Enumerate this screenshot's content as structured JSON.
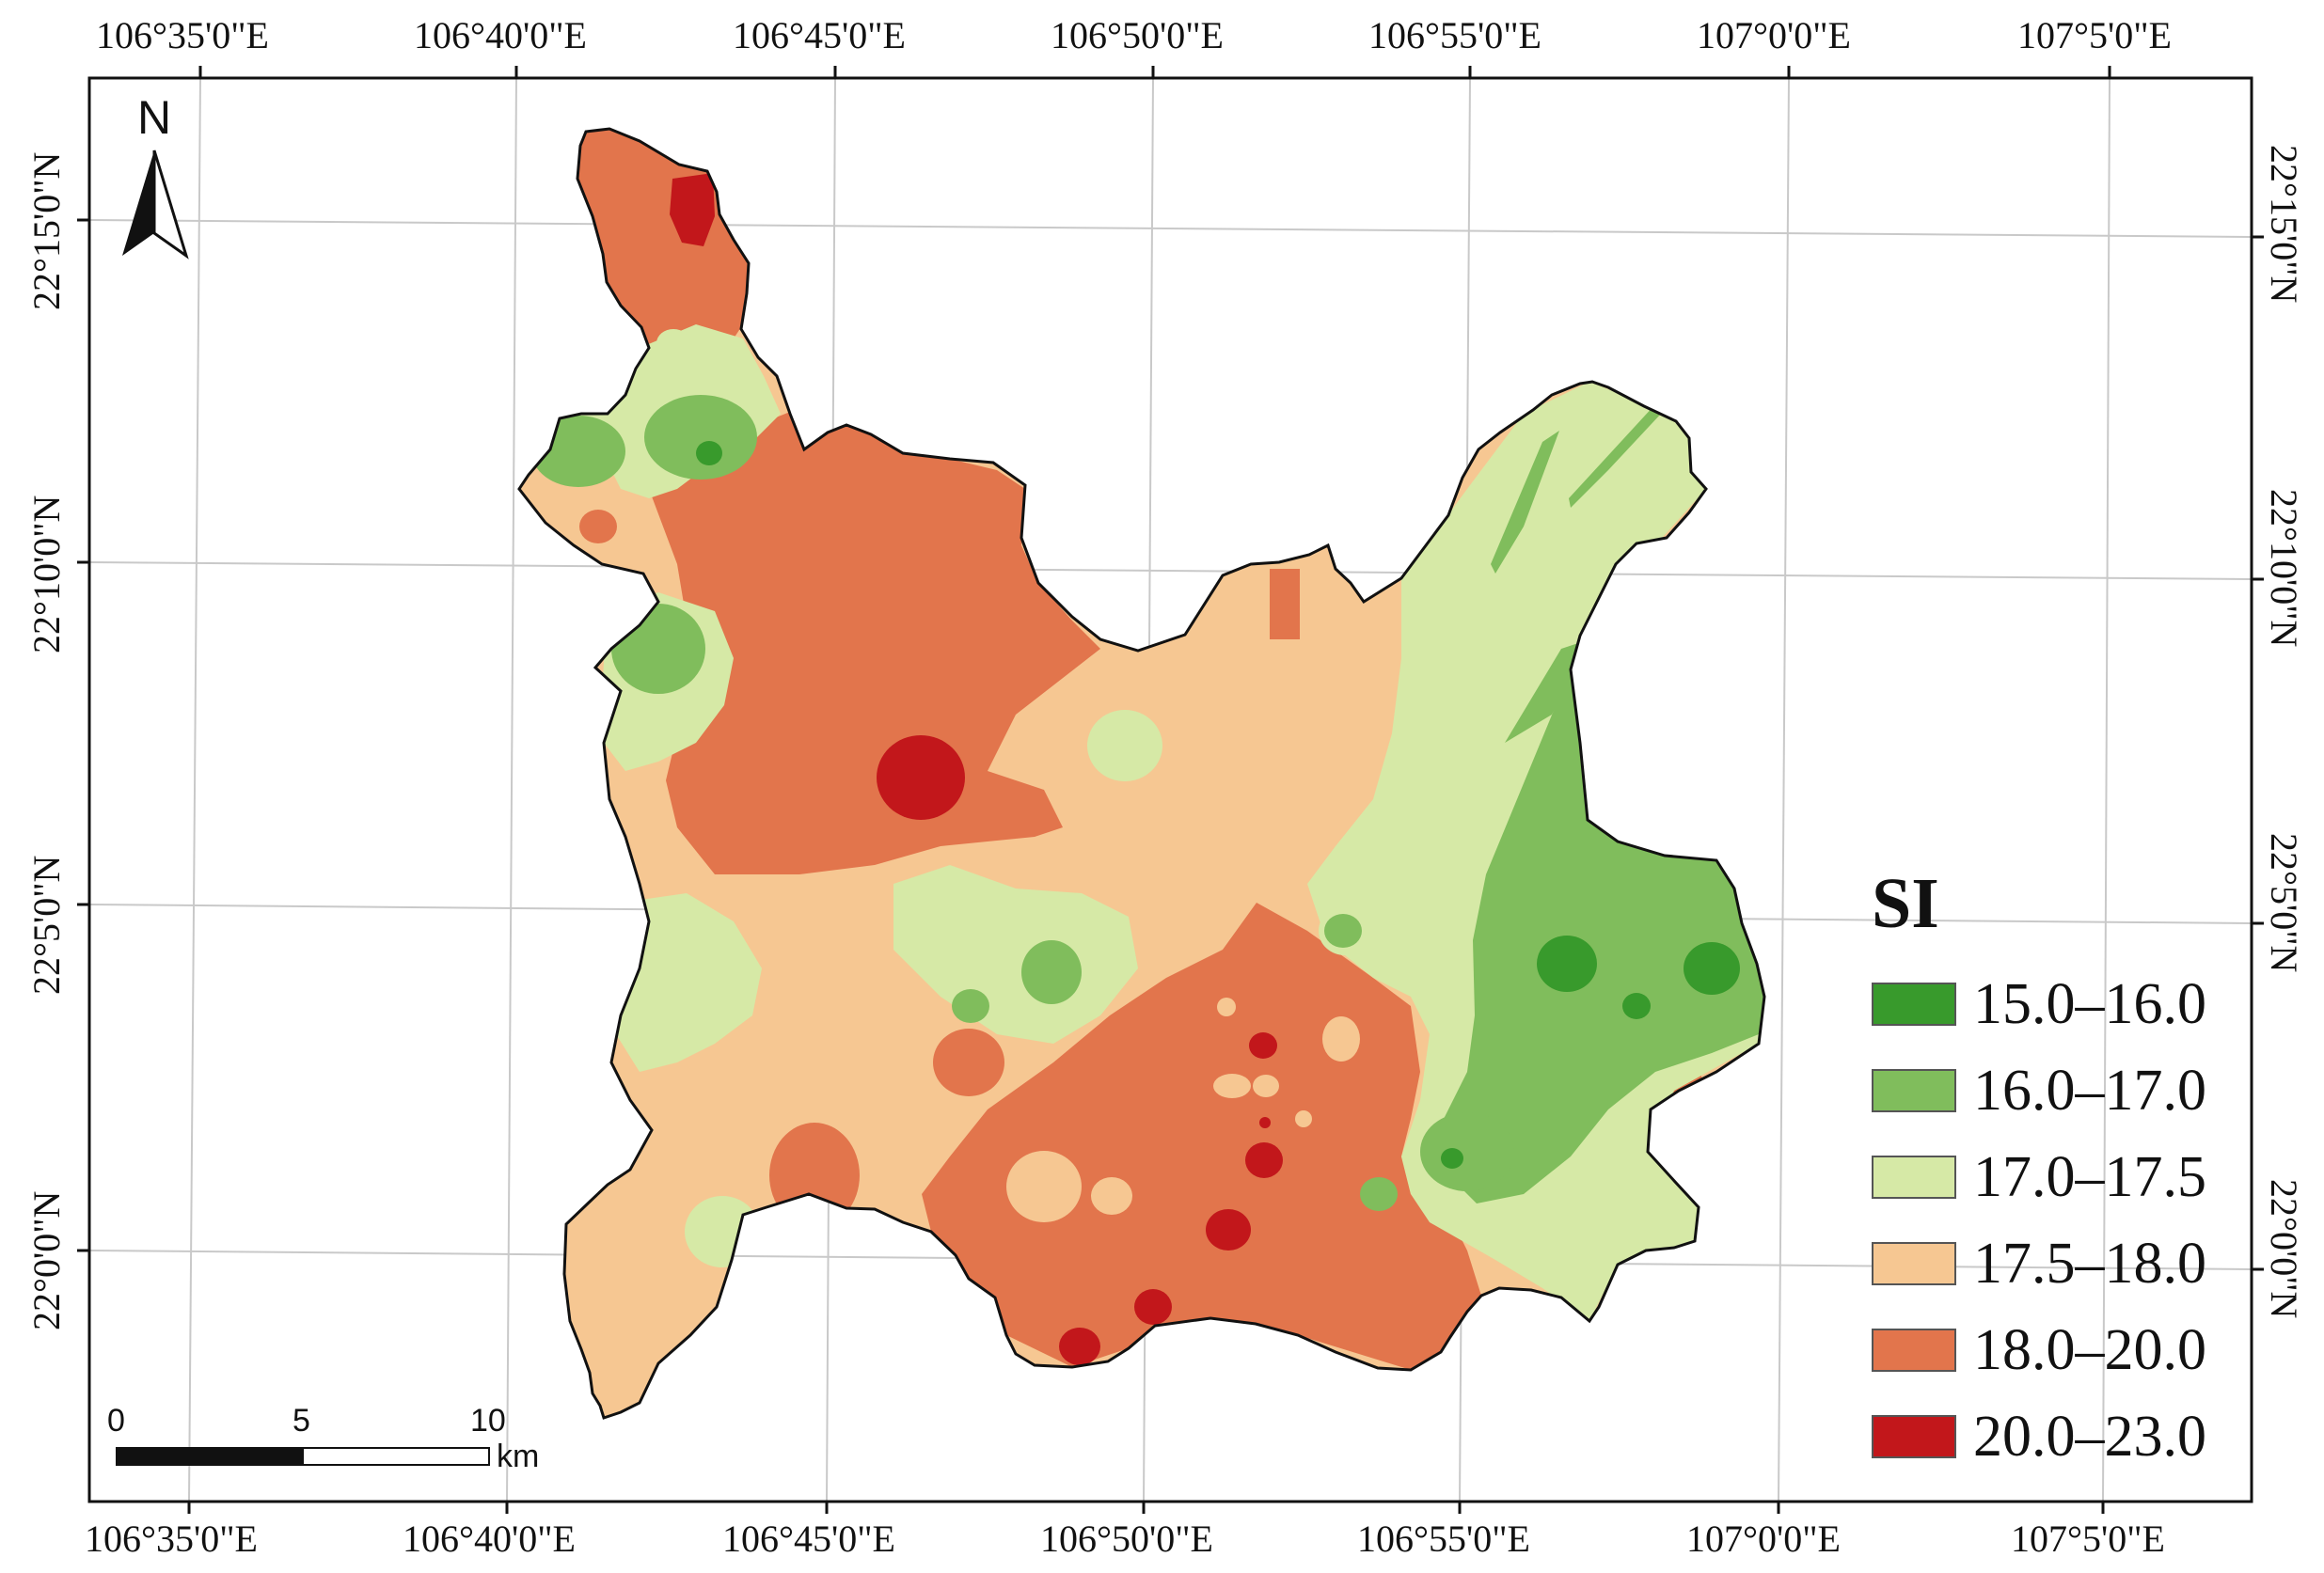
{
  "lon_labels": [
    "106°35'0\"E",
    "106°40'0\"E",
    "106°45'0\"E",
    "106°50'0\"E",
    "106°55'0\"E",
    "107°0'0\"E",
    "107°5'0\"E"
  ],
  "lat_labels": [
    "22°15'0\"N",
    "22°10'0\"N",
    "22°5'0\"N",
    "22°0'0\"N"
  ],
  "north": "N",
  "scale": {
    "ticks": [
      "0",
      "5",
      "10"
    ],
    "unit": "km"
  },
  "legend": {
    "title": "SI",
    "classes": [
      {
        "label": "15.0–16.0",
        "color": "#389a2c"
      },
      {
        "label": "16.0–17.0",
        "color": "#80bd5c"
      },
      {
        "label": "17.0–17.5",
        "color": "#d6e9a6"
      },
      {
        "label": "17.5–18.0",
        "color": "#f6c792"
      },
      {
        "label": "18.0–20.0",
        "color": "#e2754c"
      },
      {
        "label": "20.0–23.0",
        "color": "#c2171b"
      }
    ]
  }
}
